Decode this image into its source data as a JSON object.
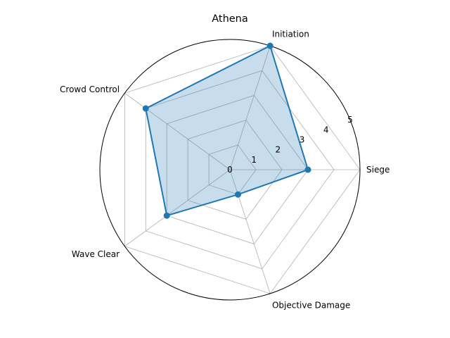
{
  "chart_data": {
    "type": "radar",
    "title": "Athena",
    "categories": [
      "Siege",
      "Initiation",
      "Crowd Control",
      "Wave Clear",
      "Objective Damage"
    ],
    "series": [
      {
        "values": [
          3,
          5,
          4,
          3,
          1
        ]
      }
    ],
    "rlim": [
      0,
      5
    ],
    "rticks": [
      0,
      1,
      2,
      3,
      4,
      5
    ],
    "grid": true,
    "colors": {
      "line": "#1f77b4",
      "fill": "#1f77b4",
      "fill_opacity": 0.25
    }
  }
}
